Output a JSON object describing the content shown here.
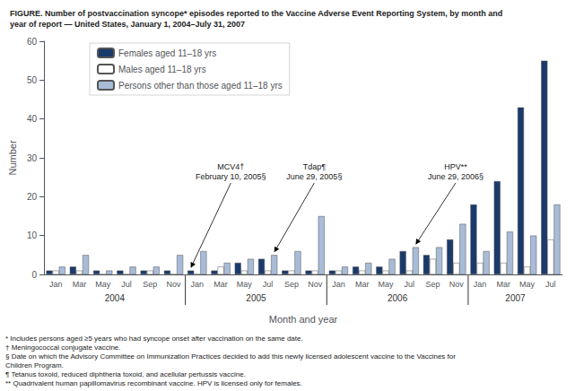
{
  "chart_data": {
    "type": "bar",
    "title": "FIGURE. Number of postvaccination syncope* episodes reported to the Vaccine Adverse Event Reporting System, by month and\nyear of report — United States, January 1, 2004–July 31, 2007",
    "xlabel": "Month and year",
    "ylabel": "Number",
    "categories": [
      "Jan",
      "Mar",
      "May",
      "Jul",
      "Sep",
      "Nov",
      "Jan",
      "Mar",
      "May",
      "Jul",
      "Sep",
      "Nov",
      "Jan",
      "Mar",
      "May",
      "Jul",
      "Sep",
      "Nov",
      "Jan",
      "Mar",
      "May",
      "Jul"
    ],
    "category_groups": [
      "2004",
      "2004",
      "2004",
      "2004",
      "2004",
      "2004",
      "2005",
      "2005",
      "2005",
      "2005",
      "2005",
      "2005",
      "2006",
      "2006",
      "2006",
      "2006",
      "2006",
      "2006",
      "2007",
      "2007",
      "2007",
      "2007"
    ],
    "series": [
      {
        "name": "Females aged 11–18 yrs",
        "color": "#1a3a6b",
        "values": [
          1,
          2,
          1,
          1,
          1,
          1,
          1,
          1,
          3,
          4,
          1,
          1,
          1,
          2,
          2,
          6,
          5,
          9,
          18,
          24,
          43,
          55
        ]
      },
      {
        "name": "Males aged 11–18 yrs",
        "color": "#ffffff",
        "values": [
          1,
          1,
          0,
          0,
          1,
          0,
          0,
          2,
          1,
          1,
          1,
          1,
          1,
          1,
          1,
          1,
          4,
          3,
          3,
          3,
          2,
          9
        ]
      },
      {
        "name": "Persons other than those aged 11–18 yrs",
        "color": "#a8bcd8",
        "values": [
          2,
          5,
          1,
          2,
          2,
          5,
          6,
          3,
          4,
          5,
          6,
          15,
          2,
          3,
          4,
          7,
          7,
          13,
          6,
          11,
          10,
          18
        ]
      }
    ],
    "ylim": [
      0,
      60
    ],
    "yticks": [
      0,
      10,
      20,
      30,
      40,
      50,
      60
    ],
    "grid": false,
    "legend": "upper left",
    "annotations": [
      {
        "text": "MCV4†\nFebruary 10, 2005§",
        "series": "Females aged 11–18 yrs",
        "category_index": 6
      },
      {
        "text": "Tdap¶\nJune 29, 2005§",
        "series": "Persons other than those aged 11–18 yrs",
        "category_index": 9
      },
      {
        "text": "HPV**\nJune 29, 2006§",
        "series": "Persons other than those aged 11–18 yrs",
        "category_index": 15
      }
    ],
    "footnotes": [
      "* Includes persons aged ≥5 years who had syncope onset after vaccination on the same date.",
      "† Meningococcal conjugate vaccine.",
      "§ Date on which the Advisory Committee on Immunization Practices decided to add this newly licensed adolescent vaccine to the Vaccines for Children Program.",
      "¶ Tetanus toxoid, reduced diphtheria toxoid, and acellular pertussis vaccine.",
      "** Quadrivalent human papillomavirus recombinant vaccine. HPV is licensed only for females."
    ]
  }
}
